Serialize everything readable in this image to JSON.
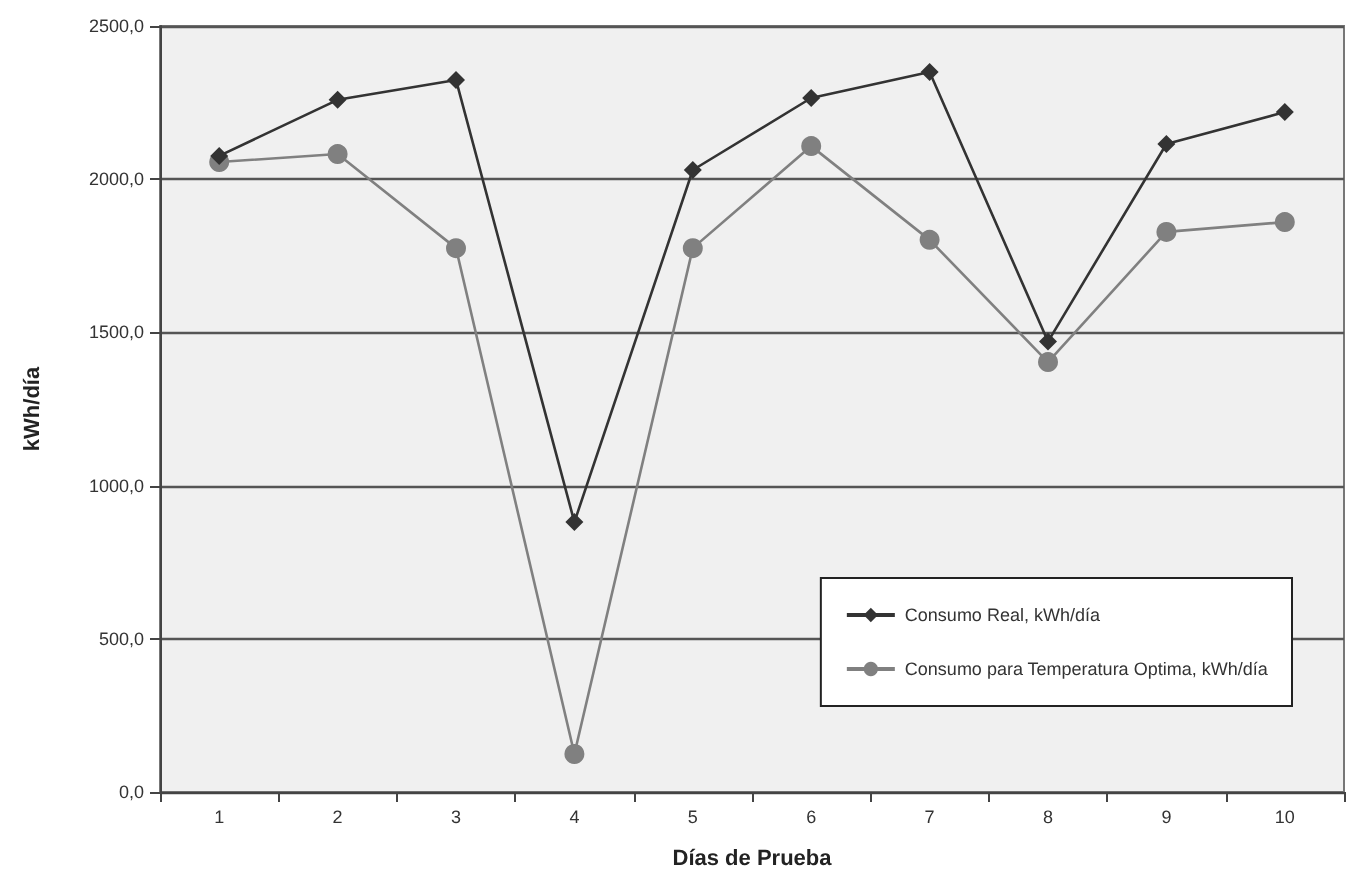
{
  "chart_data": {
    "type": "line",
    "xlabel": "Días de Prueba",
    "ylabel": "kWh/día",
    "categories": [
      "1",
      "2",
      "3",
      "4",
      "5",
      "6",
      "7",
      "8",
      "9",
      "10"
    ],
    "series": [
      {
        "name": "Consumo Real, kWh/día",
        "color": "#333333",
        "marker": "diamond",
        "values": [
          2076,
          2259,
          2324,
          881,
          2030,
          2265,
          2350,
          1470,
          2115,
          2219
        ]
      },
      {
        "name": "Consumo para Temperatura Optima, kWh/día",
        "color": "#808080",
        "marker": "circle",
        "values": [
          2056,
          2082,
          1775,
          124,
          1775,
          2108,
          1802,
          1403,
          1828,
          1860
        ]
      }
    ],
    "ylim": [
      0,
      2500
    ],
    "yticks": [
      {
        "value": 0,
        "label": "0,0"
      },
      {
        "value": 500,
        "label": "500,0"
      },
      {
        "value": 1000,
        "label": "1000,0"
      },
      {
        "value": 1500,
        "label": "1500,0"
      },
      {
        "value": 2000,
        "label": "2000,0"
      },
      {
        "value": 2500,
        "label": "2500,0"
      }
    ],
    "grid": "y",
    "legend": "bottom right"
  }
}
